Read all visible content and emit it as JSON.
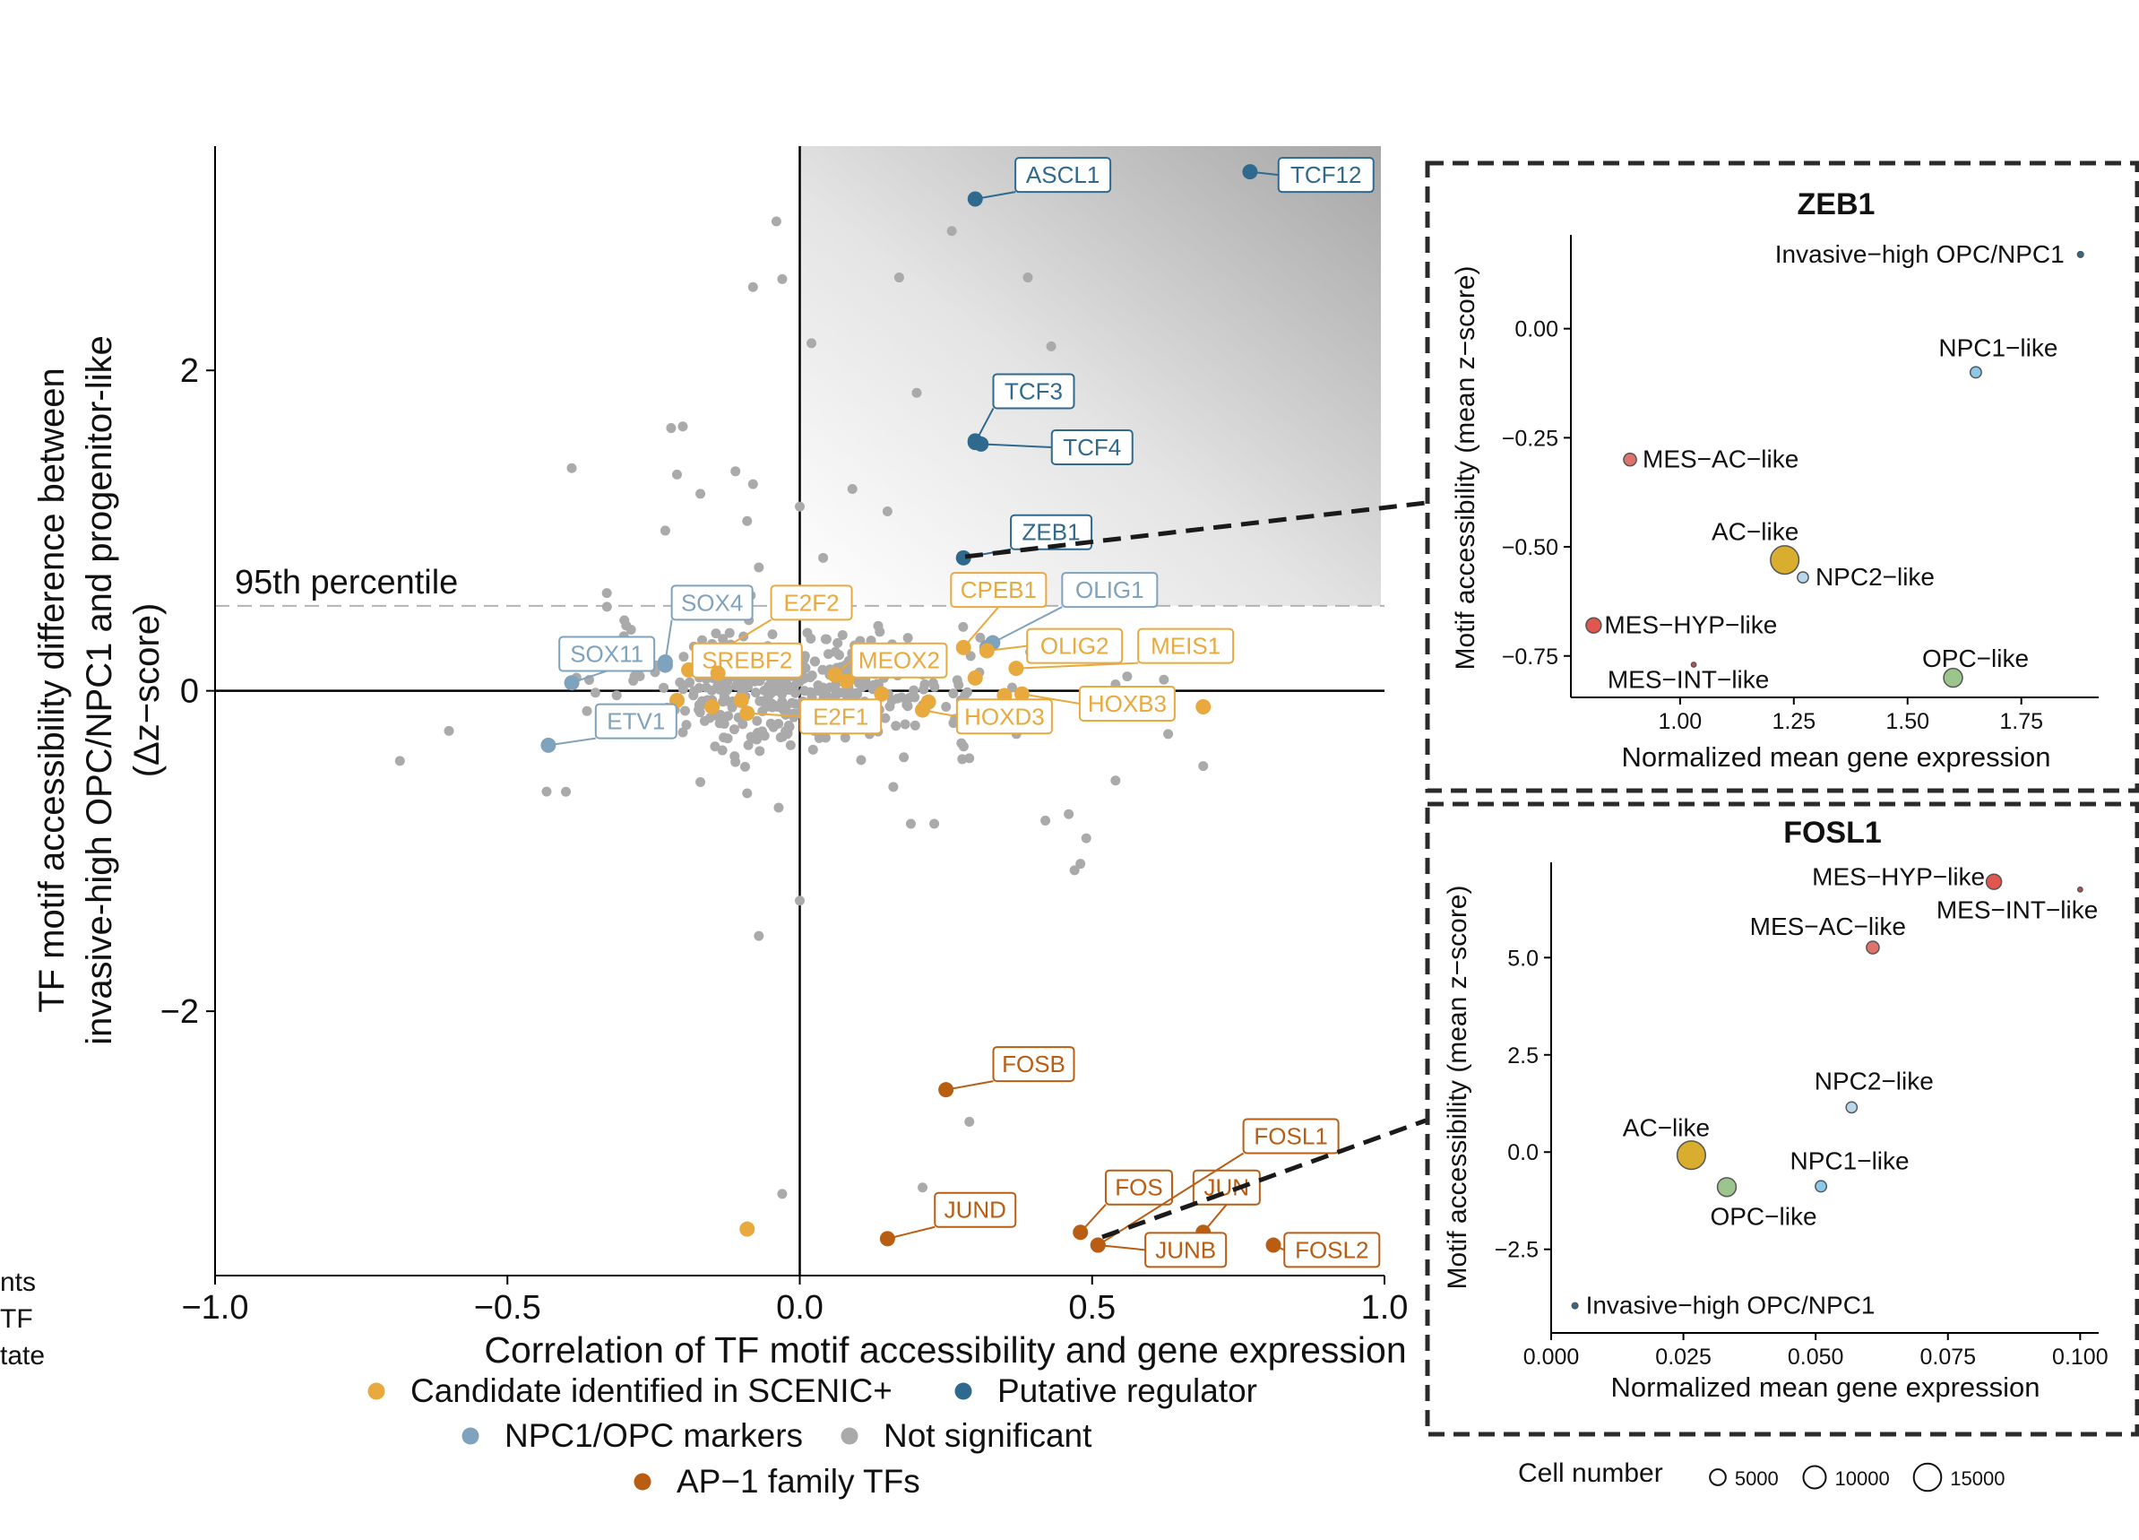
{
  "figure": {
    "colors": {
      "candidate": "#E8A93F",
      "putative": "#2F6A8E",
      "marker": "#7FA2BD",
      "ns": "#AAAAAA",
      "ap1": "#B95D12",
      "dash_border": "#2B2B2B",
      "mes_hyp": "#E0574F",
      "mes_ac": "#E0726C",
      "mes_int": "#C0504C",
      "ac": "#D9AE2E",
      "opc": "#9CC58E",
      "npc1": "#8CC9E8",
      "npc2": "#B7D8EC",
      "invasive": "#2F6A8E"
    },
    "left_fragments": [
      "nts",
      "TF",
      "tate"
    ]
  },
  "chart_data": [
    {
      "type": "scatter",
      "id": "main",
      "title": "",
      "xlabel": "Correlation of TF motif accessibility and gene expression",
      "ylabel_lines": [
        "TF motif accessibility difference between",
        "invasive-high OPC/NPC1 and progenitor-like",
        "(Δz−score)"
      ],
      "xlim": [
        -1.0,
        1.0
      ],
      "ylim": [
        -3.65,
        3.4
      ],
      "xticks": [
        -1.0,
        -0.5,
        0.0,
        0.5,
        1.0
      ],
      "xtick_labels": [
        "−1.0",
        "−0.5",
        "0.0",
        "0.5",
        "1.0"
      ],
      "yticks": [
        -2,
        0,
        2
      ],
      "ytick_labels": [
        "−2",
        "0",
        "2"
      ],
      "percentile_y": 0.53,
      "percentile_label": "95th percentile",
      "legend": [
        {
          "key": "candidate",
          "label": "Candidate identified in SCENIC+"
        },
        {
          "key": "putative",
          "label": "Putative regulator"
        },
        {
          "key": "marker",
          "label": "NPC1/OPC markers"
        },
        {
          "key": "ns",
          "label": "Not significant"
        },
        {
          "key": "ap1",
          "label": "AP−1 family TFs"
        }
      ],
      "labeled_points": [
        {
          "label": "ASCL1",
          "x": 0.3,
          "y": 3.07,
          "cat": "putative",
          "lx": 0.45,
          "ly": 3.22
        },
        {
          "label": "TCF12",
          "x": 0.77,
          "y": 3.24,
          "cat": "putative",
          "lx": 0.9,
          "ly": 3.22
        },
        {
          "label": "TCF3",
          "x": 0.3,
          "y": 1.55,
          "cat": "putative",
          "lx": 0.4,
          "ly": 1.87
        },
        {
          "label": "TCF4",
          "x": 0.31,
          "y": 1.54,
          "cat": "putative",
          "lx": 0.5,
          "ly": 1.52
        },
        {
          "label": "ZEB1",
          "x": 0.28,
          "y": 0.83,
          "cat": "putative",
          "lx": 0.43,
          "ly": 0.99
        },
        {
          "label": "SOX4",
          "x": -0.23,
          "y": 0.18,
          "cat": "marker",
          "lx": -0.15,
          "ly": 0.55
        },
        {
          "label": "SOX11",
          "x": -0.39,
          "y": 0.05,
          "cat": "marker",
          "lx": -0.33,
          "ly": 0.23
        },
        {
          "label": "ETV1",
          "x": -0.43,
          "y": -0.34,
          "cat": "marker",
          "lx": -0.28,
          "ly": -0.19
        },
        {
          "label": "OLIG1",
          "x": 0.33,
          "y": 0.3,
          "cat": "marker",
          "lx": 0.53,
          "ly": 0.63
        },
        {
          "label": "E2F2",
          "x": -0.19,
          "y": 0.13,
          "cat": "candidate",
          "lx": 0.02,
          "ly": 0.55
        },
        {
          "label": "SREBF2",
          "x": -0.14,
          "y": 0.11,
          "cat": "candidate",
          "lx": -0.09,
          "ly": 0.19
        },
        {
          "label": "E2F1",
          "x": -0.09,
          "y": -0.14,
          "cat": "candidate",
          "lx": 0.07,
          "ly": -0.16
        },
        {
          "label": "MEOX2",
          "x": 0.06,
          "y": 0.1,
          "cat": "candidate",
          "lx": 0.17,
          "ly": 0.19
        },
        {
          "label": "CPEB1",
          "x": 0.28,
          "y": 0.27,
          "cat": "candidate",
          "lx": 0.34,
          "ly": 0.63
        },
        {
          "label": "OLIG2",
          "x": 0.32,
          "y": 0.25,
          "cat": "candidate",
          "lx": 0.47,
          "ly": 0.28
        },
        {
          "label": "MEIS1",
          "x": 0.37,
          "y": 0.14,
          "cat": "candidate",
          "lx": 0.66,
          "ly": 0.28
        },
        {
          "label": "HOXB3",
          "x": 0.38,
          "y": -0.02,
          "cat": "candidate",
          "lx": 0.56,
          "ly": -0.08
        },
        {
          "label": "HOXD3",
          "x": 0.21,
          "y": -0.12,
          "cat": "candidate",
          "lx": 0.35,
          "ly": -0.16
        },
        {
          "label": "FOSB",
          "x": 0.25,
          "y": -2.49,
          "cat": "ap1",
          "lx": 0.4,
          "ly": -2.33
        },
        {
          "label": "JUND",
          "x": 0.15,
          "y": -3.42,
          "cat": "ap1",
          "lx": 0.3,
          "ly": -3.24
        },
        {
          "label": "FOS",
          "x": 0.48,
          "y": -3.38,
          "cat": "ap1",
          "lx": 0.58,
          "ly": -3.1
        },
        {
          "label": "JUN",
          "x": 0.69,
          "y": -3.38,
          "cat": "ap1",
          "lx": 0.73,
          "ly": -3.1
        },
        {
          "label": "JUNB",
          "x": 0.51,
          "y": -3.46,
          "cat": "ap1",
          "lx": 0.66,
          "ly": -3.49
        },
        {
          "label": "FOSL1",
          "x": 0.51,
          "y": -3.46,
          "cat": "ap1",
          "lx": 0.84,
          "ly": -2.78
        },
        {
          "label": "FOSL2",
          "x": 0.81,
          "y": -3.46,
          "cat": "ap1",
          "lx": 0.91,
          "ly": -3.49
        }
      ],
      "extra_points": [
        {
          "x": 0.69,
          "y": -0.1,
          "cat": "candidate"
        },
        {
          "x": -0.09,
          "y": -3.36,
          "cat": "candidate"
        },
        {
          "x": -0.21,
          "y": -0.06,
          "cat": "candidate"
        },
        {
          "x": -0.1,
          "y": -0.06,
          "cat": "candidate"
        },
        {
          "x": 0.14,
          "y": -0.02,
          "cat": "candidate"
        },
        {
          "x": 0.22,
          "y": -0.07,
          "cat": "candidate"
        },
        {
          "x": 0.3,
          "y": 0.08,
          "cat": "candidate"
        },
        {
          "x": 0.35,
          "y": -0.03,
          "cat": "candidate"
        },
        {
          "x": 0.08,
          "y": 0.06,
          "cat": "candidate"
        },
        {
          "x": -0.15,
          "y": -0.1,
          "cat": "candidate"
        },
        {
          "x": 0.3,
          "y": 1.56,
          "cat": "putative"
        },
        {
          "x": -0.23,
          "y": 0.16,
          "cat": "marker"
        },
        {
          "x": 0.32,
          "y": 0.27,
          "cat": "marker"
        }
      ],
      "ns_outliers": [
        [
          -0.04,
          2.93
        ],
        [
          -0.08,
          2.52
        ],
        [
          -0.03,
          2.57
        ],
        [
          0.02,
          2.17
        ],
        [
          0.17,
          2.58
        ],
        [
          0.26,
          2.87
        ],
        [
          0.39,
          2.58
        ],
        [
          0.43,
          2.15
        ],
        [
          0.2,
          1.86
        ],
        [
          -0.2,
          1.65
        ],
        [
          -0.22,
          1.64
        ],
        [
          -0.39,
          1.39
        ],
        [
          -0.21,
          1.35
        ],
        [
          -0.17,
          1.23
        ],
        [
          -0.11,
          1.37
        ],
        [
          -0.08,
          1.29
        ],
        [
          0.09,
          1.26
        ],
        [
          0.15,
          1.12
        ],
        [
          -0.09,
          1.06
        ],
        [
          -0.23,
          1.0
        ],
        [
          0.0,
          1.15
        ],
        [
          -0.07,
          0.77
        ],
        [
          0.04,
          0.83
        ],
        [
          -0.33,
          0.61
        ],
        [
          -0.3,
          0.44
        ],
        [
          -0.6,
          -0.25
        ],
        [
          -0.4,
          -0.63
        ],
        [
          -0.17,
          -0.57
        ],
        [
          -0.09,
          -0.64
        ],
        [
          0.16,
          -0.6
        ],
        [
          0.23,
          -0.83
        ],
        [
          0.19,
          -0.83
        ],
        [
          0.46,
          -0.77
        ],
        [
          0.48,
          -1.08
        ],
        [
          0.49,
          -0.92
        ],
        [
          0.47,
          -1.12
        ],
        [
          0.42,
          -0.81
        ],
        [
          0.63,
          -0.27
        ],
        [
          0.69,
          -0.47
        ],
        [
          0.54,
          -0.56
        ],
        [
          0.0,
          -1.31
        ],
        [
          -0.07,
          -1.53
        ],
        [
          0.29,
          -2.69
        ],
        [
          0.21,
          -3.1
        ],
        [
          -0.03,
          -3.14
        ],
        [
          0.69,
          -0.1
        ],
        [
          0.56,
          0.09
        ],
        [
          0.54,
          0.04
        ]
      ],
      "ns_cloud": {
        "count": 420,
        "center_x": 0.0,
        "center_y": 0.0,
        "spread_x": 0.16,
        "spread_y": 0.18,
        "seed": 7
      }
    },
    {
      "type": "scatter",
      "id": "zeb1",
      "title": "ZEB1",
      "xlabel": "Normalized mean gene expression",
      "ylabel": "Motif accessibility (mean z−score)",
      "xlim": [
        0.76,
        1.92
      ],
      "ylim": [
        -0.845,
        0.215
      ],
      "xticks": [
        1.0,
        1.25,
        1.5,
        1.75
      ],
      "xtick_labels": [
        "1.00",
        "1.25",
        "1.50",
        "1.75"
      ],
      "yticks": [
        0.0,
        -0.25,
        -0.5,
        -0.75
      ],
      "ytick_labels": [
        "0.00",
        "−0.25",
        "−0.50",
        "−0.75"
      ],
      "points": [
        {
          "label": "Invasive−high OPC/NPC1",
          "x": 1.88,
          "y": 0.17,
          "color": "invasive",
          "size": 700,
          "anchor": "end",
          "ldx": -18,
          "ldy": 9
        },
        {
          "label": "NPC1−like",
          "x": 1.65,
          "y": -0.1,
          "color": "npc1",
          "size": 2500,
          "anchor": "middle",
          "ldx": 25,
          "ldy": -18
        },
        {
          "label": "MES−AC−like",
          "x": 0.89,
          "y": -0.3,
          "color": "mes_ac",
          "size": 3200,
          "anchor": "start",
          "ldx": 14,
          "ldy": 9
        },
        {
          "label": "AC−like",
          "x": 1.23,
          "y": -0.53,
          "color": "ac",
          "size": 16000,
          "anchor": "middle",
          "ldx": -33,
          "ldy": -22
        },
        {
          "label": "NPC2−like",
          "x": 1.27,
          "y": -0.57,
          "color": "npc2",
          "size": 2400,
          "anchor": "start",
          "ldx": 14,
          "ldy": 9
        },
        {
          "label": "MES−HYP−like",
          "x": 0.81,
          "y": -0.68,
          "color": "mes_hyp",
          "size": 4600,
          "anchor": "start",
          "ldx": 12,
          "ldy": 9
        },
        {
          "label": "OPC−like",
          "x": 1.6,
          "y": -0.8,
          "color": "opc",
          "size": 7000,
          "anchor": "middle",
          "ldx": 25,
          "ldy": -12
        },
        {
          "label": "MES−INT−like",
          "x": 1.03,
          "y": -0.77,
          "color": "mes_int",
          "size": 450,
          "anchor": "middle",
          "ldx": -6,
          "ldy": 26
        }
      ]
    },
    {
      "type": "scatter",
      "id": "fosl1",
      "title": "FOSL1",
      "xlabel": "Normalized mean gene expression",
      "ylabel": "Motif accessibility (mean z−score)",
      "xlim": [
        0.0,
        0.1035
      ],
      "ylim": [
        -4.65,
        7.45
      ],
      "xticks": [
        0.0,
        0.025,
        0.05,
        0.075,
        0.1
      ],
      "xtick_labels": [
        "0.000",
        "0.025",
        "0.050",
        "0.075",
        "0.100"
      ],
      "yticks": [
        5.0,
        2.5,
        0.0,
        -2.5
      ],
      "ytick_labels": [
        "5.0",
        "2.5",
        "0.0",
        "−2.5"
      ],
      "points": [
        {
          "label": "MES−HYP−like",
          "x": 0.0837,
          "y": 6.95,
          "color": "mes_hyp",
          "size": 4600,
          "anchor": "end",
          "ldx": -10,
          "ldy": 4
        },
        {
          "label": "MES−INT−like",
          "x": 0.1,
          "y": 6.75,
          "color": "mes_int",
          "size": 450,
          "anchor": "end",
          "ldx": 20,
          "ldy": 32
        },
        {
          "label": "MES−AC−like",
          "x": 0.0608,
          "y": 5.26,
          "color": "mes_ac",
          "size": 3200,
          "anchor": "end",
          "ldx": 37,
          "ldy": -14
        },
        {
          "label": "NPC2−like",
          "x": 0.0568,
          "y": 1.15,
          "color": "npc2",
          "size": 2400,
          "anchor": "middle",
          "ldx": 25,
          "ldy": -20
        },
        {
          "label": "AC−like",
          "x": 0.0265,
          "y": -0.08,
          "color": "ac",
          "size": 16000,
          "anchor": "middle",
          "ldx": -28,
          "ldy": -21
        },
        {
          "label": "OPC−like",
          "x": 0.0332,
          "y": -0.9,
          "color": "opc",
          "size": 7000,
          "anchor": "middle",
          "ldx": 41,
          "ldy": 42
        },
        {
          "label": "NPC1−like",
          "x": 0.051,
          "y": -0.88,
          "color": "npc1",
          "size": 2500,
          "anchor": "middle",
          "ldx": 32,
          "ldy": -19
        },
        {
          "label": "Invasive−high OPC/NPC1",
          "x": 0.0045,
          "y": -3.95,
          "color": "invasive",
          "size": 700,
          "anchor": "start",
          "ldx": 12,
          "ldy": 9
        }
      ]
    }
  ],
  "size_legend": {
    "title": "Cell number",
    "items": [
      {
        "label": "5000",
        "size": 5000
      },
      {
        "label": "10000",
        "size": 10000
      },
      {
        "label": "15000",
        "size": 15000
      }
    ]
  }
}
